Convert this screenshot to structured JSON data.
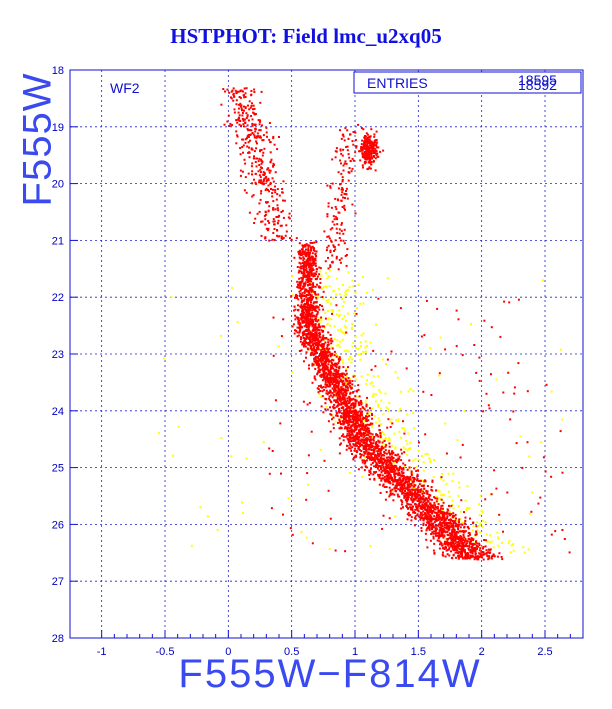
{
  "title": "HSTPHOT: Field lmc_u2xq05",
  "chart_data": {
    "type": "scatter",
    "title": "HSTPHOT: Field lmc_u2xq05",
    "xlabel": "F555W−F814W",
    "ylabel": "F555W",
    "xlim": [
      -1.25,
      2.8
    ],
    "ylim": [
      28,
      18
    ],
    "y_inverted": true,
    "grid": true,
    "xticks": [
      "-1",
      "-0.5",
      "0",
      "0.5",
      "1",
      "1.5",
      "2",
      "2.5"
    ],
    "yticks": [
      "18",
      "19",
      "20",
      "21",
      "22",
      "23",
      "24",
      "25",
      "26",
      "27",
      "28"
    ],
    "panel_label": "WF2",
    "stats_box": {
      "label": "ENTRIES",
      "value_a": "18595",
      "value_b": "18592"
    },
    "series_colors": [
      "#ff0000",
      "#ffff00"
    ],
    "features": {
      "main_sequence": {
        "color_range": [
          0.5,
          1.9
        ],
        "mag_range": [
          21.0,
          26.6
        ]
      },
      "red_giant_clump": {
        "color": 1.1,
        "mag": 19.4
      },
      "blue_plume": {
        "color_range": [
          0.0,
          0.4
        ],
        "mag_range": [
          18.3,
          21.0
        ]
      }
    }
  }
}
